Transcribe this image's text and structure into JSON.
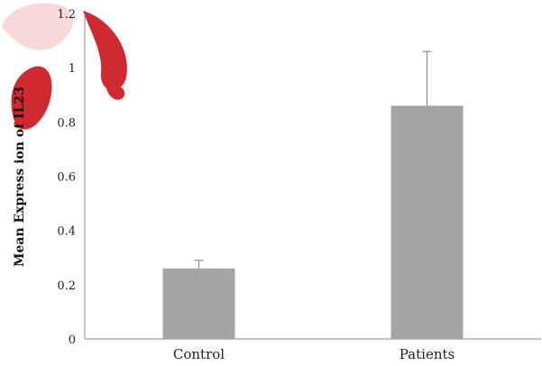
{
  "chart_data": {
    "type": "bar",
    "title": "",
    "xlabel": "",
    "ylabel": "Mean Express ion of IL23",
    "categories": [
      "Control",
      "Patients"
    ],
    "values": [
      0.26,
      0.86
    ],
    "error_upper": [
      0.29,
      1.06
    ],
    "ylim": [
      0,
      1.2
    ],
    "yticks": [
      "0",
      "0.2",
      "0.4",
      "0.6",
      "0.8",
      "1",
      "1.2"
    ],
    "grid": false,
    "legend": "none",
    "colors": {
      "bar": "#a5a5a5",
      "error_bar": "#8c8c8c",
      "axis": "#888888",
      "watermark": "#cc1f24"
    }
  }
}
